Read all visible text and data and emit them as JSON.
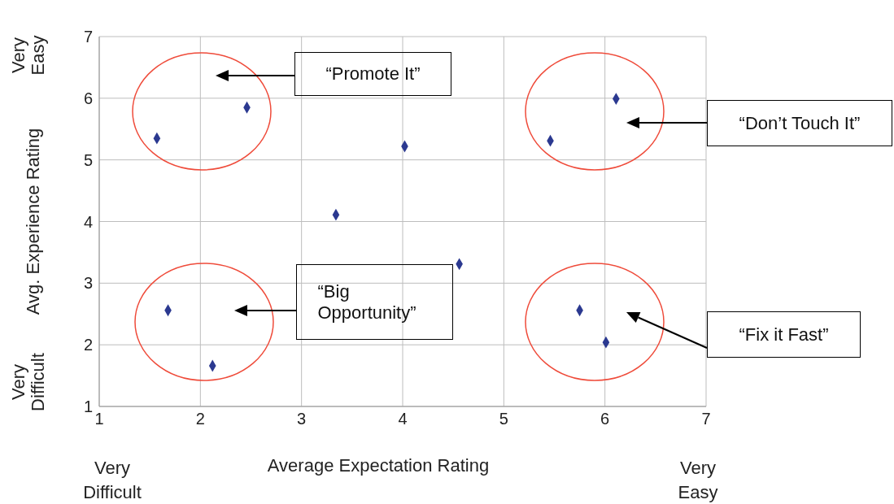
{
  "chart_data": {
    "type": "scatter",
    "xlabel": "Average Expectation Rating",
    "ylabel": "Avg. Experience Rating",
    "x": [
      1.57,
      2.46,
      4.02,
      3.34,
      4.56,
      5.46,
      6.11,
      1.68,
      2.12,
      5.75,
      6.01
    ],
    "series": [
      {
        "color": "#2b3990",
        "values": [
          5.35,
          5.85,
          5.22,
          4.11,
          3.31,
          5.31,
          5.99,
          2.56,
          1.66,
          2.56,
          2.04
        ]
      }
    ],
    "xlim": [
      1,
      7
    ],
    "xticks": [
      1,
      2,
      3,
      4,
      5,
      6,
      7
    ],
    "ylim": [
      1,
      7
    ],
    "yticks": [
      1,
      2,
      3,
      4,
      5,
      6,
      7
    ],
    "grid": true,
    "marker": "diamond",
    "annotations": [
      "Very Easy",
      "Very Difficult",
      "Very Difficult",
      "Very Easy",
      "“Promote It”",
      "“Don’t Touch It”",
      "“Big Opportunity”",
      "“Fix it Fast”"
    ]
  }
}
